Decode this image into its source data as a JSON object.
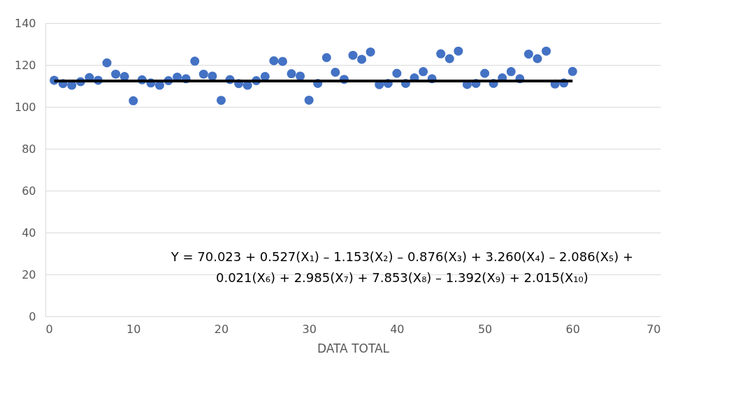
{
  "chart_data": {
    "type": "scatter",
    "xlabel": "DATA TOTAL",
    "xlim": [
      0,
      70
    ],
    "xticks": [
      0,
      10,
      20,
      30,
      40,
      50,
      60,
      70
    ],
    "ylim": [
      0,
      140
    ],
    "yticks": [
      0,
      20,
      40,
      60,
      80,
      100,
      120,
      140
    ],
    "grid": "y",
    "x": [
      1,
      2,
      3,
      4,
      5,
      6,
      7,
      8,
      9,
      10,
      11,
      12,
      13,
      14,
      15,
      16,
      17,
      18,
      19,
      20,
      21,
      22,
      23,
      24,
      25,
      26,
      27,
      28,
      29,
      30,
      31,
      32,
      33,
      34,
      35,
      36,
      37,
      38,
      39,
      40,
      41,
      42,
      43,
      44,
      45,
      46,
      47,
      48,
      49,
      50,
      51,
      52,
      53,
      54,
      55,
      56,
      57,
      58,
      59,
      60
    ],
    "series": [
      {
        "color": "#4472c4",
        "marker": "circle",
        "values": [
          112.7,
          111.1,
          110.3,
          112.0,
          114.0,
          112.7,
          121.0,
          115.6,
          114.5,
          102.9,
          112.9,
          111.4,
          110.3,
          112.5,
          114.2,
          113.4,
          121.8,
          115.6,
          114.7,
          103.1,
          113.0,
          111.1,
          110.3,
          112.5,
          114.5,
          122.0,
          121.7,
          115.8,
          114.7,
          103.2,
          111.2,
          123.5,
          116.5,
          113.1,
          124.6,
          122.7,
          126.2,
          110.6,
          111.2,
          116.0,
          111.2,
          113.8,
          116.8,
          113.4,
          125.3,
          123.0,
          126.6,
          110.7,
          111.2,
          116.0,
          111.2,
          113.8,
          116.8,
          113.4,
          125.2,
          123.0,
          126.6,
          110.9,
          111.4,
          116.9
        ]
      },
      {
        "type": "line",
        "marker": "none",
        "color": "#000000",
        "line_style": "solid",
        "x": [
          1,
          60
        ],
        "values": [
          112.3,
          112.3
        ]
      }
    ],
    "annotations": [
      "Y = 70.023 + 0.527(X₁) – 1.153(X₂) – 0.876(X₃) + 3.260(X₄) – 2.086(X₅) +",
      "0.021(X₆) + 2.985(X₇) + 7.853(X₈) – 1.392(X₉) + 2.015(X₁₀)"
    ]
  }
}
